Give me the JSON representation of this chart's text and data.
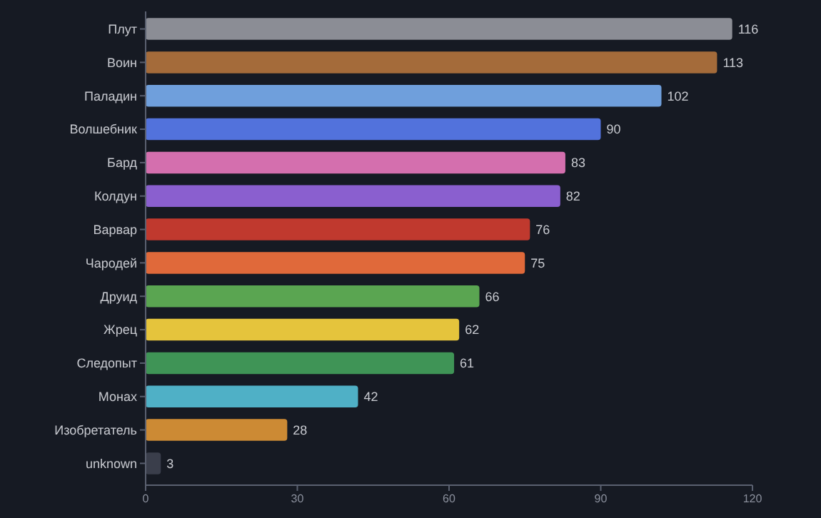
{
  "chart_data": {
    "type": "bar",
    "orientation": "horizontal",
    "categories": [
      "Плут",
      "Воин",
      "Паладин",
      "Волшебник",
      "Бард",
      "Колдун",
      "Варвар",
      "Чародей",
      "Друид",
      "Жрец",
      "Следопыт",
      "Монах",
      "Изобретатель",
      "unknown"
    ],
    "values": [
      116,
      113,
      102,
      90,
      83,
      82,
      76,
      75,
      66,
      62,
      61,
      42,
      28,
      3
    ],
    "colors": [
      "#8b8d95",
      "#a46b3a",
      "#6f9fdc",
      "#5272dc",
      "#d46fae",
      "#8a5fcf",
      "#c0392e",
      "#e0693a",
      "#5aa551",
      "#e5c43c",
      "#3f9456",
      "#4fb0c6",
      "#cc8a34",
      "#3a3e4b"
    ],
    "xlim": [
      0,
      120
    ],
    "xticks": [
      0,
      30,
      60,
      90,
      120
    ],
    "data_labels": true,
    "grid": false
  }
}
